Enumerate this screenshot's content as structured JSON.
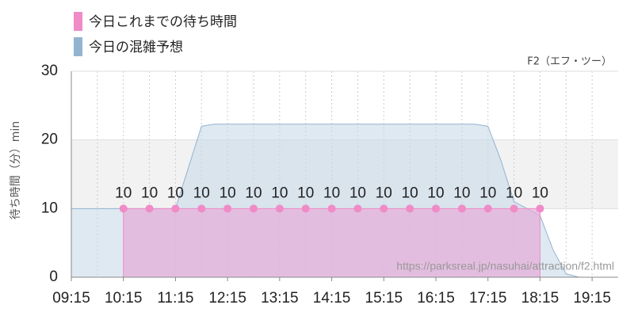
{
  "chart_data": {
    "type": "area",
    "subtitle": "F2（エフ・ツー）",
    "y_label": "待ち時間（分）min",
    "annotation": "https://parksreal.jp/nasuhai/attraction/f2.html",
    "xlim": [
      "09:15",
      "19:45"
    ],
    "xticks": [
      "09:15",
      "10:15",
      "11:15",
      "12:15",
      "13:15",
      "14:15",
      "15:15",
      "16:15",
      "17:15",
      "18:15",
      "19:15"
    ],
    "ylim": [
      0,
      30
    ],
    "yticks": [
      0,
      10,
      20,
      30
    ],
    "grid": true,
    "series": [
      {
        "name": "今日これまでの待ち時間",
        "color": "#f08bc8",
        "x": [
          "10:15",
          "10:45",
          "11:15",
          "11:45",
          "12:15",
          "12:45",
          "13:15",
          "13:45",
          "14:15",
          "14:45",
          "15:15",
          "15:45",
          "16:15",
          "16:45",
          "17:15",
          "17:45",
          "18:15"
        ],
        "values": [
          10,
          10,
          10,
          10,
          10,
          10,
          10,
          10,
          10,
          10,
          10,
          10,
          10,
          10,
          10,
          10,
          10
        ]
      },
      {
        "name": "今日の混雑予想",
        "color": "#93b4d0",
        "x": [
          "09:15",
          "10:15",
          "11:15",
          "11:30",
          "11:45",
          "12:00",
          "17:00",
          "17:15",
          "17:30",
          "17:45",
          "18:00",
          "18:15",
          "18:30",
          "18:45",
          "19:00",
          "19:45"
        ],
        "values": [
          10,
          10,
          10,
          16,
          22,
          22.3,
          22.3,
          22,
          17,
          11,
          10,
          9,
          4,
          0.5,
          0,
          0
        ]
      }
    ]
  }
}
